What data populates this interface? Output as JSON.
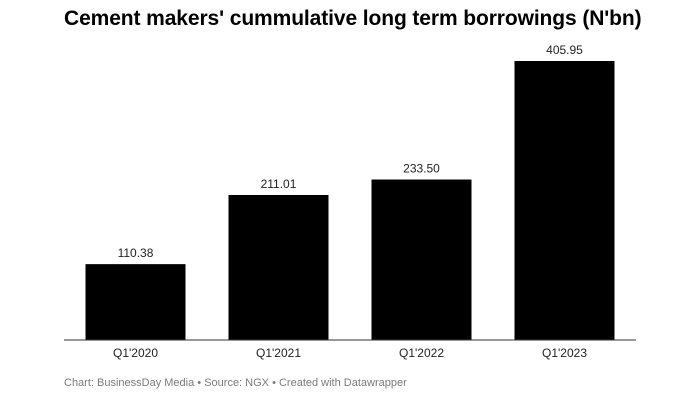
{
  "chart_data": {
    "type": "bar",
    "title": "Cement makers' cummulative long term borrowings (N'bn)",
    "categories": [
      "Q1'2020",
      "Q1'2021",
      "Q1'2022",
      "Q1'2023"
    ],
    "values": [
      110.38,
      211.01,
      233.5,
      405.95
    ],
    "value_labels": [
      "110.38",
      "211.01",
      "233.50",
      "405.95"
    ],
    "xlabel": "",
    "ylabel": "",
    "ylim": [
      0,
      405.95
    ],
    "grid": false,
    "bar_color": "#000000"
  },
  "footer": {
    "chart_credit": "Chart: BusinessDay Media",
    "source": "Source: NGX",
    "created_with": "Created with Datawrapper",
    "separator": " • "
  }
}
